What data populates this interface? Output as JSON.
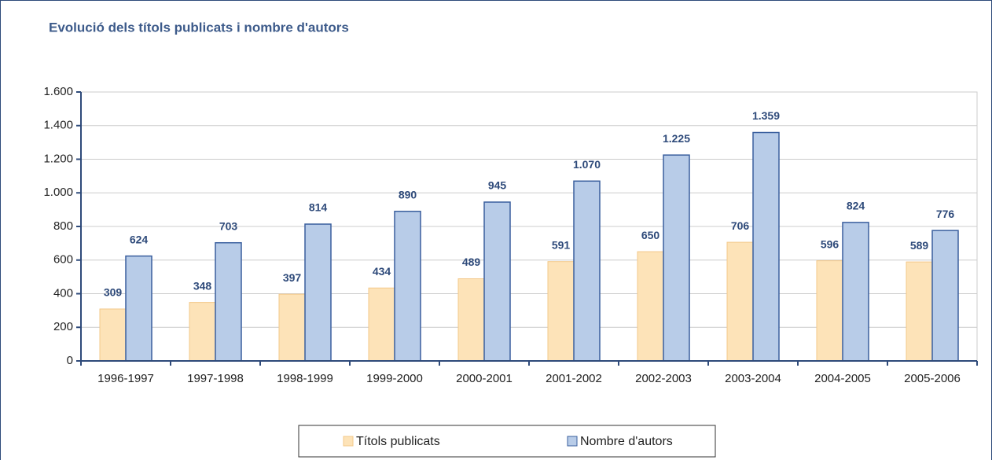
{
  "chart_data": {
    "type": "bar",
    "title": "Evolució dels títols publicats i nombre d'autors",
    "categories": [
      "1996-1997",
      "1997-1998",
      "1998-1999",
      "1999-2000",
      "2000-2001",
      "2001-2002",
      "2002-2003",
      "2003-2004",
      "2004-2005",
      "2005-2006"
    ],
    "series": [
      {
        "name": "Títols publicats",
        "color": "#fde3b8",
        "values": [
          309,
          348,
          397,
          434,
          489,
          591,
          650,
          706,
          596,
          589
        ]
      },
      {
        "name": "Nombre d'autors",
        "color": "#b8cce8",
        "values": [
          624,
          703,
          814,
          890,
          945,
          1070,
          1225,
          1359,
          824,
          776
        ],
        "value_labels": [
          "624",
          "703",
          "814",
          "890",
          "945",
          "1.070",
          "1.225",
          "1.359",
          "824",
          "776"
        ]
      }
    ],
    "ylim": [
      0,
      1600
    ],
    "yticks": [
      0,
      200,
      400,
      600,
      800,
      {
        "value": 1000,
        "label": "1.000"
      },
      {
        "value": 1200,
        "label": "1.200"
      },
      {
        "value": 1400,
        "label": "1.400"
      },
      {
        "value": 1600,
        "label": "1.600"
      }
    ],
    "grid": true,
    "legend": "bottom"
  }
}
